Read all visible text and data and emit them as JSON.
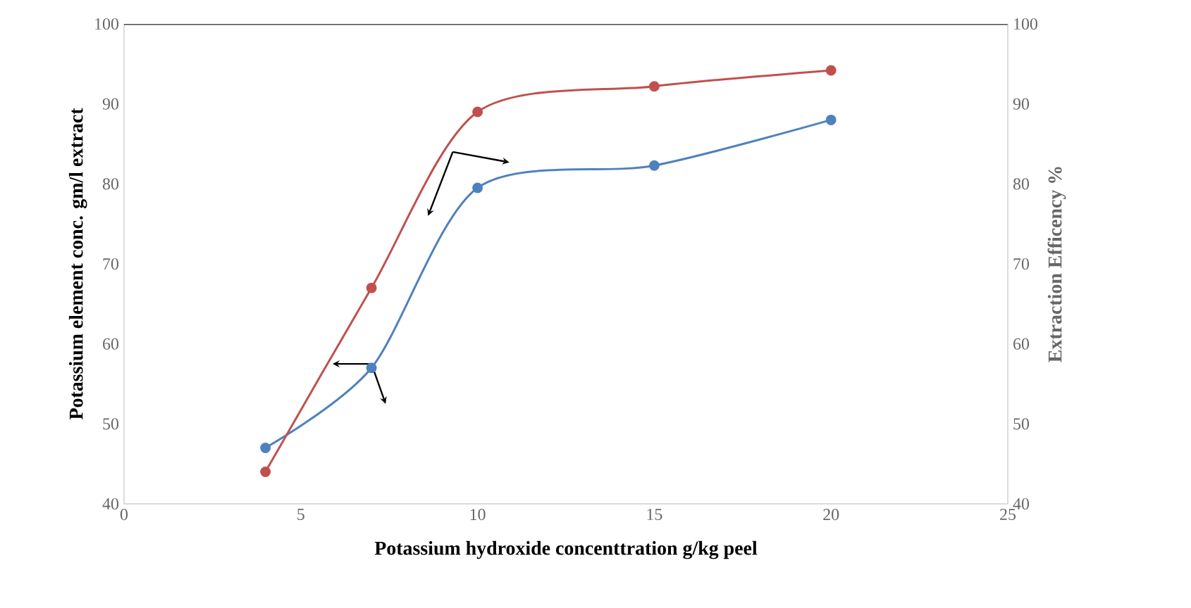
{
  "chart_data": {
    "type": "line",
    "xlabel": "Potassium hydroxide concenttration g/kg peel",
    "ylabel": "Potassium element conc. gm/l extract",
    "y2label": "Extraction Efficency %",
    "xlim": [
      0,
      25
    ],
    "xticks": [
      0,
      5,
      10,
      15,
      20,
      25
    ],
    "ylim": [
      40,
      100
    ],
    "yticks": [
      40,
      50,
      60,
      70,
      80,
      90,
      100
    ],
    "y2lim": [
      40,
      100
    ],
    "y2ticks": [
      40,
      50,
      60,
      70,
      80,
      90,
      100
    ],
    "marker": "circle",
    "series": [
      {
        "color": "#4f81bd",
        "x": [
          4,
          7,
          10,
          15,
          20
        ],
        "values": [
          47,
          57,
          79.5,
          82.3,
          88
        ]
      },
      {
        "color": "#c0504d",
        "axis": "y2",
        "x": [
          4,
          7,
          10,
          15,
          20
        ],
        "values": [
          44,
          67,
          89,
          92.2,
          94.2
        ]
      }
    ]
  }
}
